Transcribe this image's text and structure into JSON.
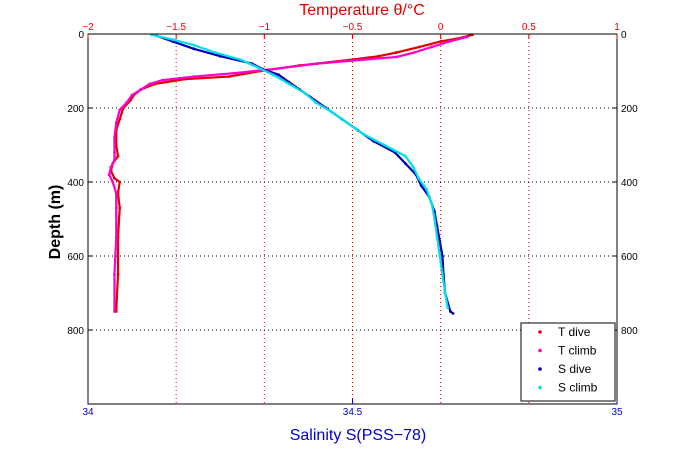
{
  "chart_data": {
    "type": "scatter",
    "title": "",
    "top_axis": {
      "label": "Temperature θ/°C",
      "range": [
        -2,
        1
      ],
      "ticks": [
        -2,
        -1.5,
        -1,
        -0.5,
        0,
        0.5,
        1
      ],
      "tick_labels": [
        "−2",
        "−1.5",
        "−1",
        "−0.5",
        "0",
        "0.5",
        "1"
      ],
      "color": "#e00000"
    },
    "bottom_axis": {
      "label": "Salinity S(PSS−78)",
      "range": [
        34,
        35
      ],
      "ticks": [
        34,
        34.5,
        35
      ],
      "tick_labels": [
        "34",
        "34.5",
        "35"
      ],
      "color": "#0000c8"
    },
    "y_axis": {
      "label": "Depth (m)",
      "range": [
        0,
        1000
      ],
      "reversed": true,
      "ticks": [
        0,
        200,
        400,
        600,
        800
      ],
      "tick_labels": [
        "0",
        "200",
        "400",
        "600",
        "800"
      ]
    },
    "grid": true,
    "legend_position": "bottom-right",
    "series": [
      {
        "name": "T dive",
        "axis": "top",
        "color": "#e00000",
        "points": [
          [
            0.18,
            2
          ],
          [
            0.12,
            10
          ],
          [
            0.0,
            20
          ],
          [
            -0.12,
            35
          ],
          [
            -0.25,
            50
          ],
          [
            -0.35,
            60
          ],
          [
            -0.55,
            72
          ],
          [
            -0.8,
            85
          ],
          [
            -1.02,
            100
          ],
          [
            -1.2,
            115
          ],
          [
            -1.45,
            122
          ],
          [
            -1.62,
            135
          ],
          [
            -1.7,
            150
          ],
          [
            -1.74,
            165
          ],
          [
            -1.76,
            180
          ],
          [
            -1.8,
            200
          ],
          [
            -1.82,
            230
          ],
          [
            -1.84,
            260
          ],
          [
            -1.84,
            300
          ],
          [
            -1.83,
            330
          ],
          [
            -1.86,
            350
          ],
          [
            -1.87,
            370
          ],
          [
            -1.85,
            390
          ],
          [
            -1.82,
            400
          ],
          [
            -1.83,
            430
          ],
          [
            -1.82,
            470
          ],
          [
            -1.83,
            550
          ],
          [
            -1.83,
            650
          ],
          [
            -1.84,
            750
          ]
        ]
      },
      {
        "name": "T climb",
        "axis": "top",
        "color": "#ff00cc",
        "points": [
          [
            0.15,
            8
          ],
          [
            0.05,
            20
          ],
          [
            -0.05,
            35
          ],
          [
            -0.15,
            50
          ],
          [
            -0.25,
            62
          ],
          [
            -0.45,
            70
          ],
          [
            -0.7,
            80
          ],
          [
            -0.9,
            92
          ],
          [
            -1.15,
            105
          ],
          [
            -1.4,
            115
          ],
          [
            -1.58,
            125
          ],
          [
            -1.65,
            135
          ],
          [
            -1.7,
            150
          ],
          [
            -1.75,
            165
          ],
          [
            -1.78,
            185
          ],
          [
            -1.82,
            205
          ],
          [
            -1.84,
            240
          ],
          [
            -1.85,
            280
          ],
          [
            -1.85,
            320
          ],
          [
            -1.85,
            340
          ],
          [
            -1.87,
            360
          ],
          [
            -1.88,
            380
          ],
          [
            -1.86,
            400
          ],
          [
            -1.84,
            430
          ],
          [
            -1.84,
            470
          ],
          [
            -1.84,
            550
          ],
          [
            -1.85,
            650
          ],
          [
            -1.85,
            750
          ]
        ]
      },
      {
        "name": "S dive",
        "axis": "bottom",
        "color": "#0000b4",
        "points": [
          [
            34.13,
            5
          ],
          [
            34.16,
            20
          ],
          [
            34.2,
            40
          ],
          [
            34.25,
            60
          ],
          [
            34.31,
            80
          ],
          [
            34.33,
            95
          ],
          [
            34.36,
            110
          ],
          [
            34.38,
            130
          ],
          [
            34.4,
            150
          ],
          [
            34.42,
            170
          ],
          [
            34.45,
            200
          ],
          [
            34.48,
            230
          ],
          [
            34.51,
            260
          ],
          [
            34.54,
            290
          ],
          [
            34.58,
            320
          ],
          [
            34.6,
            350
          ],
          [
            34.62,
            380
          ],
          [
            34.63,
            410
          ],
          [
            34.645,
            440
          ],
          [
            34.655,
            480
          ],
          [
            34.66,
            520
          ],
          [
            34.665,
            560
          ],
          [
            34.67,
            600
          ],
          [
            34.672,
            650
          ],
          [
            34.675,
            700
          ],
          [
            34.685,
            750
          ],
          [
            34.69,
            755
          ]
        ]
      },
      {
        "name": "S climb",
        "axis": "bottom",
        "color": "#00e0e8",
        "points": [
          [
            34.12,
            2
          ],
          [
            34.16,
            15
          ],
          [
            34.2,
            30
          ],
          [
            34.24,
            50
          ],
          [
            34.29,
            70
          ],
          [
            34.32,
            90
          ],
          [
            34.35,
            110
          ],
          [
            34.38,
            135
          ],
          [
            34.41,
            160
          ],
          [
            34.43,
            185
          ],
          [
            34.46,
            210
          ],
          [
            34.49,
            240
          ],
          [
            34.52,
            270
          ],
          [
            34.56,
            300
          ],
          [
            34.6,
            330
          ],
          [
            34.615,
            360
          ],
          [
            34.625,
            390
          ],
          [
            34.64,
            420
          ],
          [
            34.65,
            460
          ],
          [
            34.655,
            500
          ],
          [
            34.66,
            550
          ],
          [
            34.665,
            600
          ],
          [
            34.67,
            650
          ],
          [
            34.675,
            700
          ],
          [
            34.68,
            740
          ]
        ]
      }
    ]
  }
}
